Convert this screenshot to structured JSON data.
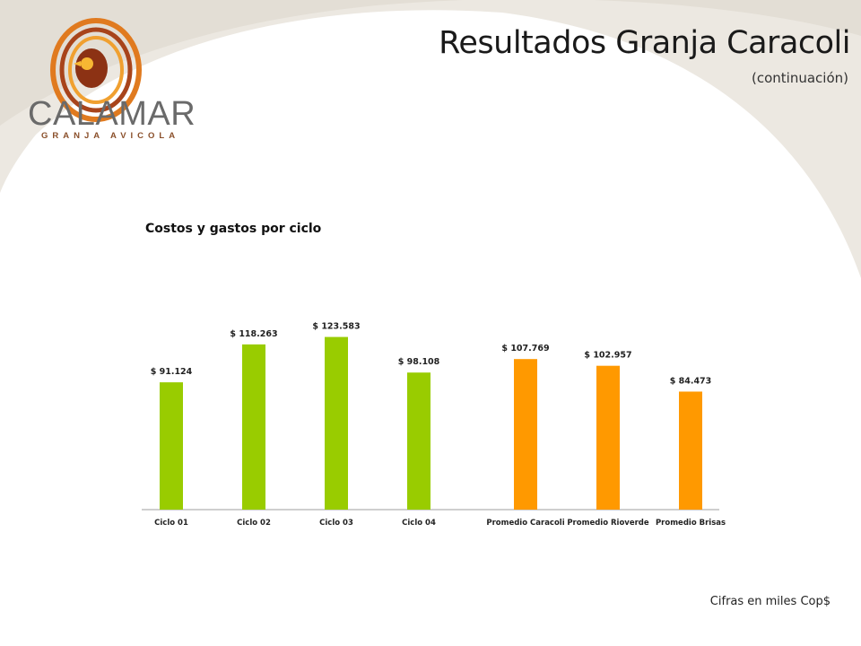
{
  "header": {
    "title": "Resultados Granja Caracoli",
    "subtitle": "(continuación)"
  },
  "logo": {
    "name": "CALAMAR",
    "tagline": "GRANJA AVICOLA",
    "icon": "hen-logo-icon"
  },
  "footnote": "Cifras en miles Cop$",
  "colors": {
    "cycle_bar": "#99cc00",
    "average_bar": "#ff9900",
    "background_swoosh": "#ece8e1"
  },
  "chart_data": {
    "type": "bar",
    "title": "Costos y gastos por ciclo",
    "xlabel": "",
    "ylabel": "",
    "ylim": [
      0,
      140000
    ],
    "grid": false,
    "legend": "none",
    "categories": [
      "Ciclo 01",
      "Ciclo 02",
      "Ciclo 03",
      "Ciclo 04",
      "Promedio Caracoli",
      "Promedio Rioverde",
      "Promedio Brisas"
    ],
    "values": [
      91124,
      118263,
      123583,
      98108,
      107769,
      102957,
      84473
    ],
    "value_labels": [
      "$ 91.124",
      "$ 118.263",
      "$ 123.583",
      "$ 98.108",
      "$ 107.769",
      "$ 102.957",
      "$ 84.473"
    ],
    "bar_colors": [
      "#99cc00",
      "#99cc00",
      "#99cc00",
      "#99cc00",
      "#ff9900",
      "#ff9900",
      "#ff9900"
    ]
  }
}
